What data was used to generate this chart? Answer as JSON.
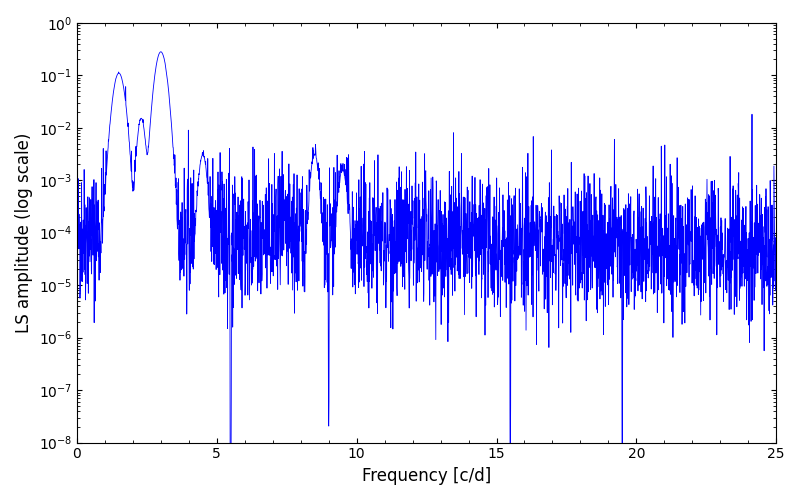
{
  "xlabel": "Frequency [c/d]",
  "ylabel": "LS amplitude (log scale)",
  "xlim": [
    0,
    25
  ],
  "ylim": [
    1e-08,
    1
  ],
  "line_color": "#0000ff",
  "line_width": 0.6,
  "figsize": [
    8.0,
    5.0
  ],
  "dpi": 100,
  "seed": 42,
  "n_points": 3000,
  "freq_max": 25.0,
  "background_color": "#ffffff"
}
